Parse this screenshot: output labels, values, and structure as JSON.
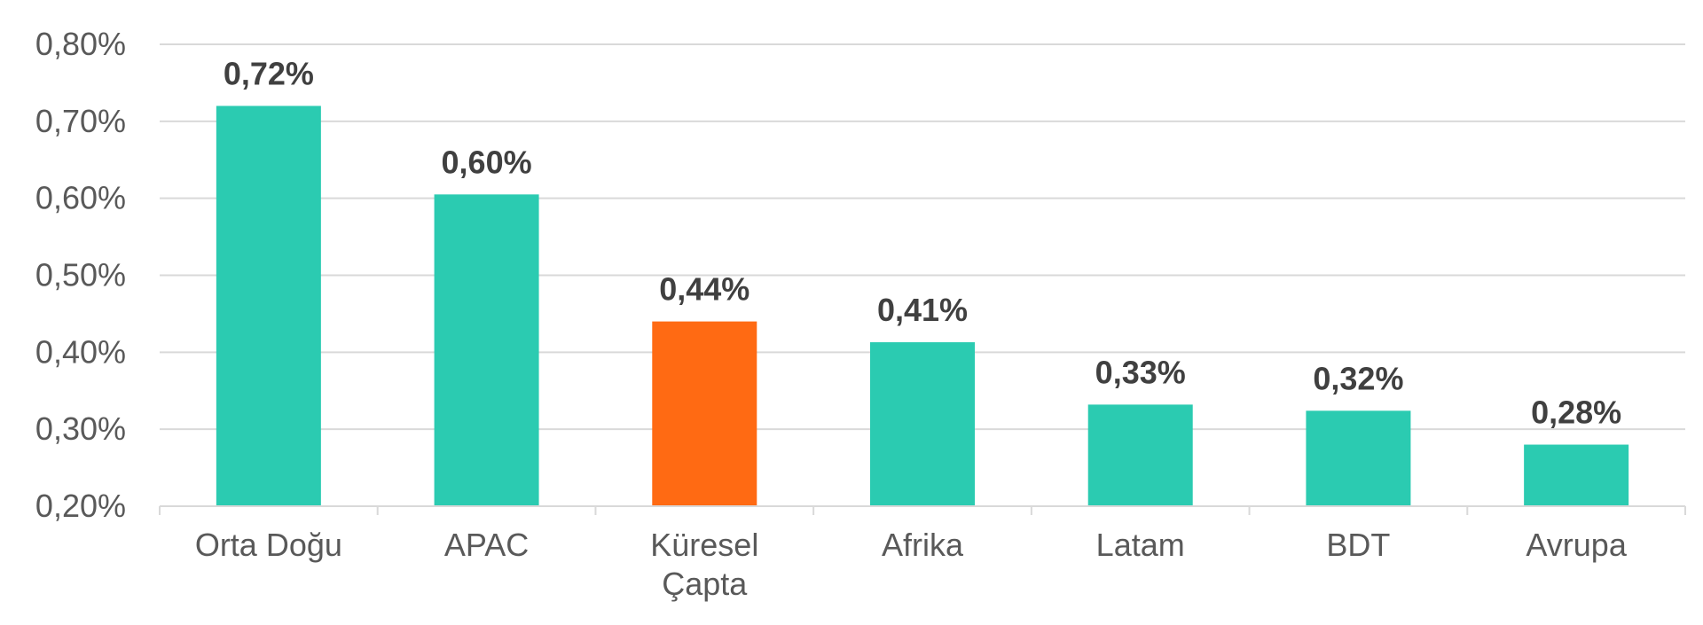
{
  "chart_data": {
    "type": "bar",
    "categories": [
      [
        "Orta Doğu"
      ],
      [
        "APAC"
      ],
      [
        "Küresel",
        "Çapta"
      ],
      [
        "Afrika"
      ],
      [
        "Latam"
      ],
      [
        "BDT"
      ],
      [
        "Avrupa"
      ]
    ],
    "values": [
      0.72,
      0.605,
      0.44,
      0.413,
      0.332,
      0.324,
      0.28
    ],
    "data_labels": [
      "0,72%",
      "0,60%",
      "0,44%",
      "0,41%",
      "0,33%",
      "0,32%",
      "0,28%"
    ],
    "ylim": [
      0.2,
      0.8
    ],
    "yticks": [
      0.2,
      0.3,
      0.4,
      0.5,
      0.6,
      0.7,
      0.8
    ],
    "ytick_labels": [
      "0,20%",
      "0,30%",
      "0,40%",
      "0,50%",
      "0,60%",
      "0,70%",
      "0,80%"
    ],
    "grid": true,
    "legend": "none",
    "bar_colors": [
      "#2bcbb1",
      "#2bcbb1",
      "#ff6a13",
      "#2bcbb1",
      "#2bcbb1",
      "#2bcbb1",
      "#2bcbb1"
    ]
  }
}
